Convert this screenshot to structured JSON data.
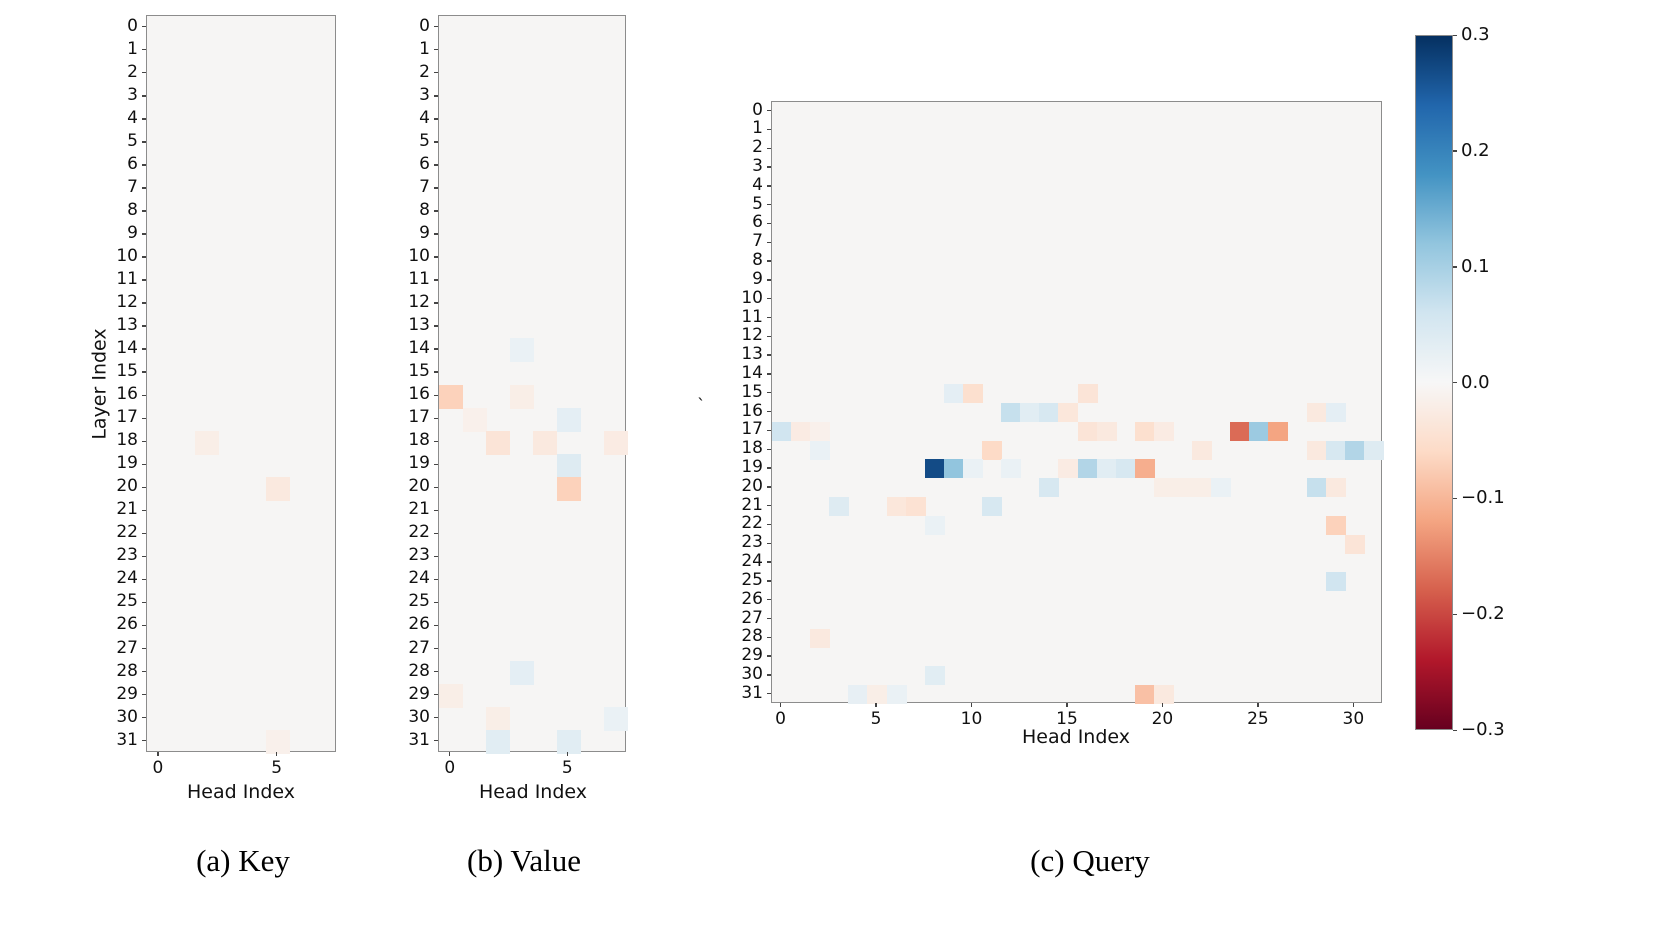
{
  "figure": {
    "background": "#ffffff",
    "plot_background": "#f6f5f4"
  },
  "chart_data": [
    {
      "type": "heatmap",
      "id": "key",
      "title": "(a) Key",
      "xlabel": "Head Index",
      "ylabel": "Layer Index",
      "n_heads": 8,
      "n_layers": 32,
      "x_tick_values": [
        0,
        5
      ],
      "x_tick_labels": [
        "0",
        "5"
      ],
      "y_tick_labels": [
        "0",
        "1",
        "2",
        "3",
        "4",
        "5",
        "6",
        "7",
        "8",
        "9",
        "10",
        "11",
        "12",
        "13",
        "14",
        "15",
        "16",
        "17",
        "18",
        "19",
        "20",
        "21",
        "22",
        "23",
        "24",
        "25",
        "26",
        "27",
        "28",
        "29",
        "30",
        "31"
      ],
      "cells_note": "triples of [head_index, layer_index, value]; all unlisted cells are ~0.0",
      "cells": [
        [
          2,
          18,
          -0.02
        ],
        [
          5,
          20,
          -0.03
        ],
        [
          5,
          31,
          -0.015
        ]
      ]
    },
    {
      "type": "heatmap",
      "id": "value",
      "title": "(b) Value",
      "xlabel": "Head Index",
      "ylabel": "",
      "n_heads": 8,
      "n_layers": 32,
      "x_tick_values": [
        0,
        5
      ],
      "x_tick_labels": [
        "0",
        "5"
      ],
      "y_tick_labels": [
        "0",
        "1",
        "2",
        "3",
        "4",
        "5",
        "6",
        "7",
        "8",
        "9",
        "10",
        "11",
        "12",
        "13",
        "14",
        "15",
        "16",
        "17",
        "18",
        "19",
        "20",
        "21",
        "22",
        "23",
        "24",
        "25",
        "26",
        "27",
        "28",
        "29",
        "30",
        "31"
      ],
      "cells_note": "triples of [head_index, layer_index, value]; all unlisted cells are ~0.0",
      "cells": [
        [
          3,
          14,
          0.02
        ],
        [
          0,
          16,
          -0.07
        ],
        [
          3,
          16,
          -0.02
        ],
        [
          1,
          17,
          -0.015
        ],
        [
          5,
          17,
          0.03
        ],
        [
          2,
          18,
          -0.04
        ],
        [
          4,
          18,
          -0.03
        ],
        [
          7,
          18,
          -0.025
        ],
        [
          5,
          19,
          0.04
        ],
        [
          5,
          20,
          -0.07
        ],
        [
          3,
          28,
          0.03
        ],
        [
          0,
          29,
          -0.02
        ],
        [
          2,
          30,
          -0.02
        ],
        [
          7,
          30,
          0.02
        ],
        [
          2,
          31,
          0.035
        ],
        [
          5,
          31,
          0.035
        ]
      ]
    },
    {
      "type": "heatmap",
      "id": "query",
      "title": "(c) Query",
      "xlabel": "Head Index",
      "ylabel": "",
      "n_heads": 32,
      "n_layers": 32,
      "x_tick_values": [
        0,
        5,
        10,
        15,
        20,
        25,
        30
      ],
      "x_tick_labels": [
        "0",
        "5",
        "10",
        "15",
        "20",
        "25",
        "30"
      ],
      "y_tick_labels": [
        "0",
        "1",
        "2",
        "3",
        "4",
        "5",
        "6",
        "7",
        "8",
        "9",
        "10",
        "11",
        "12",
        "13",
        "14",
        "15",
        "16",
        "17",
        "18",
        "19",
        "20",
        "21",
        "22",
        "23",
        "24",
        "25",
        "26",
        "27",
        "28",
        "29",
        "30",
        "31"
      ],
      "stray_mark": "`",
      "cells_note": "triples of [head_index, layer_index, value]; all unlisted cells are ~0.0",
      "cells": [
        [
          9,
          15,
          0.03
        ],
        [
          10,
          15,
          -0.05
        ],
        [
          16,
          15,
          -0.04
        ],
        [
          12,
          16,
          0.07
        ],
        [
          13,
          16,
          0.035
        ],
        [
          14,
          16,
          0.05
        ],
        [
          15,
          16,
          -0.035
        ],
        [
          28,
          16,
          -0.03
        ],
        [
          29,
          16,
          0.03
        ],
        [
          0,
          17,
          0.06
        ],
        [
          1,
          17,
          -0.025
        ],
        [
          2,
          17,
          -0.015
        ],
        [
          16,
          17,
          -0.04
        ],
        [
          17,
          17,
          -0.03
        ],
        [
          19,
          17,
          -0.05
        ],
        [
          20,
          17,
          -0.025
        ],
        [
          24,
          17,
          -0.17
        ],
        [
          25,
          17,
          0.11
        ],
        [
          26,
          17,
          -0.12
        ],
        [
          2,
          18,
          0.02
        ],
        [
          11,
          18,
          -0.06
        ],
        [
          22,
          18,
          -0.03
        ],
        [
          28,
          18,
          -0.03
        ],
        [
          29,
          18,
          0.05
        ],
        [
          30,
          18,
          0.09
        ],
        [
          31,
          18,
          0.04
        ],
        [
          8,
          19,
          0.27
        ],
        [
          9,
          19,
          0.12
        ],
        [
          10,
          19,
          0.02
        ],
        [
          12,
          19,
          0.02
        ],
        [
          15,
          19,
          -0.025
        ],
        [
          16,
          19,
          0.09
        ],
        [
          17,
          19,
          0.035
        ],
        [
          18,
          19,
          0.05
        ],
        [
          19,
          19,
          -0.11
        ],
        [
          14,
          20,
          0.05
        ],
        [
          20,
          20,
          -0.02
        ],
        [
          21,
          20,
          -0.02
        ],
        [
          22,
          20,
          -0.02
        ],
        [
          23,
          20,
          0.02
        ],
        [
          28,
          20,
          0.07
        ],
        [
          29,
          20,
          -0.03
        ],
        [
          3,
          21,
          0.04
        ],
        [
          6,
          21,
          -0.035
        ],
        [
          7,
          21,
          -0.045
        ],
        [
          11,
          21,
          0.05
        ],
        [
          8,
          22,
          0.02
        ],
        [
          29,
          22,
          -0.07
        ],
        [
          30,
          23,
          -0.04
        ],
        [
          29,
          25,
          0.06
        ],
        [
          2,
          28,
          -0.03
        ],
        [
          8,
          30,
          0.035
        ],
        [
          4,
          31,
          0.025
        ],
        [
          5,
          31,
          -0.02
        ],
        [
          6,
          31,
          0.02
        ],
        [
          19,
          31,
          -0.09
        ],
        [
          20,
          31,
          -0.03
        ]
      ]
    }
  ],
  "colorbar": {
    "vmin": -0.3,
    "vmax": 0.3,
    "colormap": "RdBu",
    "stops_low_to_high": [
      "#67001f",
      "#b2182b",
      "#d6604d",
      "#f4a582",
      "#fddbc7",
      "#f7f7f7",
      "#d1e5f0",
      "#92c5de",
      "#4393c3",
      "#2166ac",
      "#053061"
    ],
    "tick_values": [
      0.3,
      0.2,
      0.1,
      0.0,
      -0.1,
      -0.2,
      -0.3
    ],
    "tick_labels": [
      "0.3",
      "0.2",
      "0.1",
      "0.0",
      "−0.1",
      "−0.2",
      "−0.3"
    ]
  }
}
